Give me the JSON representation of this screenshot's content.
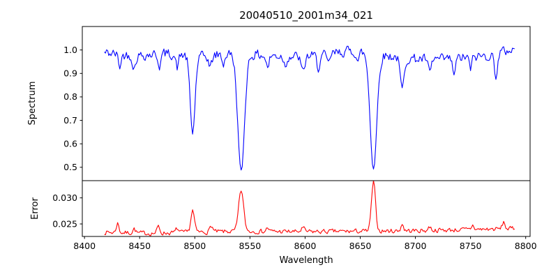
{
  "chart_data": {
    "type": "line",
    "title": "20040510_2001m34_021",
    "xlabel": "Wavelength",
    "grid": false,
    "legend": "none",
    "xlim": [
      8398,
      8804
    ],
    "x_range": [
      8418,
      8790
    ],
    "x_step": 1,
    "xticks": [
      8400,
      8450,
      8500,
      8550,
      8600,
      8650,
      8700,
      8750,
      8800
    ],
    "xtick_labels": [
      "8400",
      "8450",
      "8500",
      "8550",
      "8600",
      "8650",
      "8700",
      "8750",
      "8800"
    ],
    "absorption_line_centers": [
      8498,
      8542,
      8662
    ],
    "panels": [
      {
        "name": "spectrum",
        "ylabel": "Spectrum",
        "ylim": [
          0.443,
          1.1
        ],
        "yticks": [
          0.5,
          0.6,
          0.7,
          0.8,
          0.9,
          1.0
        ],
        "ytick_labels": [
          "0.5",
          "0.6",
          "0.7",
          "0.8",
          "0.9",
          "1.0"
        ],
        "line_color": "#0000ff",
        "series": {
          "name": "normalized-spectrum",
          "baseline_anchors": [
            [
              8418,
              0.988
            ],
            [
              8445,
              0.975
            ],
            [
              8472,
              0.985
            ],
            [
              8505,
              0.972
            ],
            [
              8535,
              0.985
            ],
            [
              8560,
              0.978
            ],
            [
              8590,
              0.972
            ],
            [
              8615,
              0.975
            ],
            [
              8638,
              0.995
            ],
            [
              8655,
              0.99
            ],
            [
              8675,
              0.975
            ],
            [
              8700,
              0.962
            ],
            [
              8725,
              0.96
            ],
            [
              8745,
              0.968
            ],
            [
              8765,
              0.975
            ],
            [
              8790,
              1.005
            ]
          ],
          "features": [
            {
              "center": 8432,
              "amplitude": -0.05,
              "sigma": 1.3
            },
            {
              "center": 8445,
              "amplitude": -0.055,
              "sigma": 1.3
            },
            {
              "center": 8468,
              "amplitude": -0.05,
              "sigma": 1.3
            },
            {
              "center": 8484,
              "amplitude": -0.055,
              "sigma": 1.3
            },
            {
              "center": 8498,
              "amplitude": -0.33,
              "sigma": 2.2
            },
            {
              "center": 8514,
              "amplitude": -0.05,
              "sigma": 1.4
            },
            {
              "center": 8526,
              "amplitude": -0.04,
              "sigma": 1.2
            },
            {
              "center": 8542,
              "amplitude": -0.505,
              "sigma": 3.0
            },
            {
              "center": 8566,
              "amplitude": -0.05,
              "sigma": 1.4
            },
            {
              "center": 8582,
              "amplitude": -0.04,
              "sigma": 1.2
            },
            {
              "center": 8598,
              "amplitude": -0.07,
              "sigma": 1.6
            },
            {
              "center": 8612,
              "amplitude": -0.05,
              "sigma": 1.3
            },
            {
              "center": 8621,
              "amplitude": -0.045,
              "sigma": 1.2
            },
            {
              "center": 8648,
              "amplitude": -0.04,
              "sigma": 1.2
            },
            {
              "center": 8662,
              "amplitude": -0.49,
              "sigma": 3.0
            },
            {
              "center": 8688,
              "amplitude": -0.135,
              "sigma": 1.8
            },
            {
              "center": 8713,
              "amplitude": -0.06,
              "sigma": 1.4
            },
            {
              "center": 8735,
              "amplitude": -0.065,
              "sigma": 1.4
            },
            {
              "center": 8750,
              "amplitude": -0.05,
              "sigma": 1.2
            },
            {
              "center": 8773,
              "amplitude": -0.09,
              "sigma": 1.5
            }
          ],
          "noise_amp": 0.02,
          "noise_seed": 42,
          "noise_mode": "multiplicative"
        }
      },
      {
        "name": "error",
        "ylabel": "Error",
        "ylim": [
          0.0226,
          0.0333
        ],
        "yticks": [
          0.025,
          0.03
        ],
        "ytick_labels": [
          "0.025",
          "0.030"
        ],
        "line_color": "#ff0000",
        "series": {
          "name": "flux-error",
          "baseline_anchors": [
            [
              8418,
              0.0234
            ],
            [
              8460,
              0.0232
            ],
            [
              8500,
              0.0234
            ],
            [
              8545,
              0.0236
            ],
            [
              8600,
              0.0235
            ],
            [
              8650,
              0.0236
            ],
            [
              8700,
              0.0237
            ],
            [
              8745,
              0.0239
            ],
            [
              8790,
              0.0241
            ]
          ],
          "features": [
            {
              "center": 8430,
              "amplitude": 0.0018,
              "sigma": 1.2
            },
            {
              "center": 8445,
              "amplitude": 0.0008,
              "sigma": 1.2
            },
            {
              "center": 8467,
              "amplitude": 0.0013,
              "sigma": 1.2
            },
            {
              "center": 8484,
              "amplitude": 0.0008,
              "sigma": 1.2
            },
            {
              "center": 8498,
              "amplitude": 0.0042,
              "sigma": 1.6
            },
            {
              "center": 8515,
              "amplitude": 0.0012,
              "sigma": 1.3
            },
            {
              "center": 8542,
              "amplitude": 0.0079,
              "sigma": 2.2
            },
            {
              "center": 8566,
              "amplitude": 0.0007,
              "sigma": 1.2
            },
            {
              "center": 8598,
              "amplitude": 0.0007,
              "sigma": 1.4
            },
            {
              "center": 8662,
              "amplitude": 0.0094,
              "sigma": 1.8
            },
            {
              "center": 8688,
              "amplitude": 0.0013,
              "sigma": 1.2
            },
            {
              "center": 8713,
              "amplitude": 0.0007,
              "sigma": 1.3
            },
            {
              "center": 8752,
              "amplitude": 0.0008,
              "sigma": 1.2
            },
            {
              "center": 8780,
              "amplitude": 0.0013,
              "sigma": 1.2
            }
          ],
          "noise_amp": 0.0004,
          "noise_seed": 7,
          "noise_mode": "additive"
        }
      }
    ]
  }
}
